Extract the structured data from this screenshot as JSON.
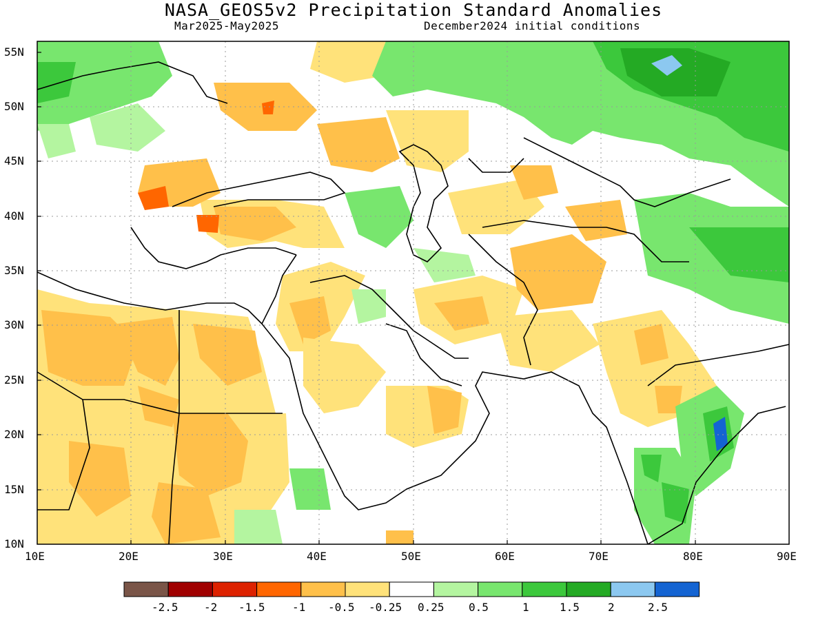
{
  "title": "NASA_GEOS5v2 Precipitation Standard Anomalies",
  "subtitle_left": "Mar2025-May2025",
  "subtitle_right": "December2024 initial conditions",
  "map": {
    "lon_range": [
      10,
      90
    ],
    "lat_range": [
      10,
      56
    ],
    "y_ticks": [
      "55N",
      "50N",
      "45N",
      "40N",
      "35N",
      "30N",
      "25N",
      "20N",
      "15N",
      "10N"
    ],
    "x_ticks": [
      "10E",
      "20E",
      "30E",
      "40E",
      "50E",
      "60E",
      "70E",
      "80E",
      "90E"
    ],
    "gridlines": "dotted"
  },
  "colorbar": {
    "colors": [
      "#7a5548",
      "#a00000",
      "#dd2200",
      "#ff6600",
      "#ffc04a",
      "#ffe27a",
      "#ffffff",
      "#b4f5a0",
      "#78e66e",
      "#3cc83c",
      "#24aa24",
      "#8cc8f0",
      "#1464d2"
    ],
    "labels": [
      "-2.5",
      "-2",
      "-1.5",
      "-1",
      "-0.5",
      "-0.25",
      "0.25",
      "0.5",
      "1",
      "1.5",
      "2",
      "2.5"
    ]
  }
}
